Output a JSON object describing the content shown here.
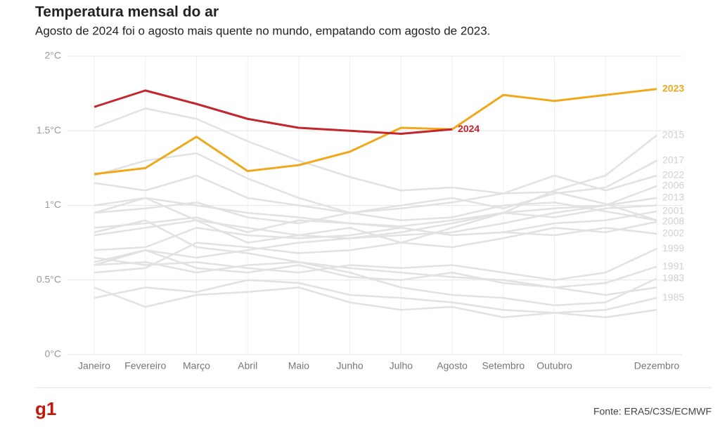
{
  "chart_data": {
    "type": "line",
    "title": "Temperatura mensal do ar",
    "subtitle": "Agosto de 2024 foi o agosto mais quente no mundo, empatando com agosto de 2023.",
    "source": "Fonte: ERA5/C3S/ECMWF",
    "logo": "g1",
    "categories": [
      "Janeiro",
      "Fevereiro",
      "Março",
      "Abril",
      "Maio",
      "Junho",
      "Julho",
      "Agosto",
      "Setembro",
      "Outubro",
      null,
      "Dezembro"
    ],
    "ylim": [
      0,
      2
    ],
    "yticks": [
      {
        "value": 0,
        "label": "0°C"
      },
      {
        "value": 0.5,
        "label": "0.5°C"
      },
      {
        "value": 1,
        "label": "1°C"
      },
      {
        "value": 1.5,
        "label": "1.5°C"
      },
      {
        "value": 2,
        "label": "2°C"
      }
    ],
    "grid": true,
    "series": [
      {
        "color": "#e2e2e2",
        "values": [
          1.52,
          1.65,
          1.58,
          1.43,
          1.3,
          1.19,
          1.1,
          1.12,
          1.08,
          1.09,
          1.01,
          0.9
        ]
      },
      {
        "color": "#e2e2e2",
        "values": [
          0.62,
          0.7,
          0.58,
          0.55,
          0.6,
          0.52,
          0.5,
          0.55,
          0.48,
          0.45,
          0.4,
          0.45
        ]
      },
      {
        "color": "#e2e2e2",
        "values": [
          0.95,
          1.05,
          0.9,
          0.85,
          0.8,
          0.78,
          0.82,
          0.88,
          0.95,
          0.92,
          0.98,
          1.0
        ]
      },
      {
        "color": "#e2e2e2",
        "values": [
          0.38,
          0.45,
          0.42,
          0.5,
          0.48,
          0.4,
          0.38,
          0.35,
          0.3,
          0.28,
          0.25,
          0.3
        ]
      },
      {
        "color": "#e2e2e2",
        "values": [
          1.15,
          1.1,
          1.2,
          1.05,
          1.0,
          0.95,
          0.9,
          0.92,
          1.0,
          1.02,
          0.96,
          0.9
        ]
      },
      {
        "name": "2015",
        "color": "#e2e2e2",
        "values": [
          0.8,
          0.85,
          0.9,
          0.75,
          0.8,
          0.85,
          0.75,
          0.85,
          0.95,
          1.1,
          1.2,
          1.47
        ]
      },
      {
        "name": "2017",
        "color": "#e2e2e2",
        "values": [
          1.2,
          1.3,
          1.35,
          1.18,
          1.05,
          0.95,
          1.0,
          1.05,
          0.98,
          1.08,
          1.12,
          1.3
        ]
      },
      {
        "name": "2022",
        "color": "#e2e2e2",
        "values": [
          0.95,
          0.98,
          1.02,
          0.92,
          0.88,
          0.95,
          0.98,
          1.02,
          1.08,
          1.2,
          1.1,
          1.2
        ]
      },
      {
        "name": "2006",
        "color": "#e2e2e2",
        "values": [
          0.6,
          0.7,
          0.65,
          0.7,
          0.75,
          0.78,
          0.8,
          0.82,
          0.88,
          0.95,
          1.0,
          1.13
        ]
      },
      {
        "name": "2013",
        "color": "#e2e2e2",
        "values": [
          0.85,
          0.88,
          0.92,
          0.82,
          0.9,
          0.88,
          0.86,
          0.9,
          0.95,
          0.98,
          1.0,
          1.05
        ]
      },
      {
        "name": "2001",
        "color": "#e2e2e2",
        "values": [
          0.7,
          0.72,
          0.85,
          0.8,
          0.78,
          0.8,
          0.85,
          0.8,
          0.82,
          0.88,
          0.9,
          0.96
        ]
      },
      {
        "name": "2008",
        "color": "#e2e2e2",
        "values": [
          0.55,
          0.58,
          0.75,
          0.72,
          0.68,
          0.7,
          0.75,
          0.72,
          0.78,
          0.85,
          0.82,
          0.89
        ]
      },
      {
        "name": "2002",
        "color": "#e2e2e2",
        "values": [
          1.0,
          1.05,
          1.0,
          0.95,
          0.92,
          0.88,
          0.85,
          0.8,
          0.82,
          0.8,
          0.85,
          0.81
        ]
      },
      {
        "name": "1999",
        "color": "#e2e2e2",
        "values": [
          0.65,
          0.6,
          0.62,
          0.58,
          0.55,
          0.6,
          0.58,
          0.6,
          0.55,
          0.5,
          0.55,
          0.71
        ]
      },
      {
        "name": "1991",
        "color": "#e2e2e2",
        "values": [
          0.6,
          0.62,
          0.55,
          0.6,
          0.62,
          0.58,
          0.55,
          0.52,
          0.5,
          0.45,
          0.48,
          0.59
        ]
      },
      {
        "name": "1983",
        "color": "#e2e2e2",
        "values": [
          0.82,
          0.9,
          0.72,
          0.68,
          0.62,
          0.55,
          0.45,
          0.4,
          0.38,
          0.33,
          0.35,
          0.51
        ]
      },
      {
        "name": "1985",
        "color": "#e2e2e2",
        "values": [
          0.45,
          0.32,
          0.4,
          0.42,
          0.45,
          0.35,
          0.3,
          0.32,
          0.25,
          0.28,
          0.3,
          0.38
        ]
      },
      {
        "name": "2023",
        "color": "#f0a81c",
        "values": [
          1.21,
          1.25,
          1.46,
          1.23,
          1.27,
          1.36,
          1.52,
          1.51,
          1.74,
          1.7,
          1.74,
          1.78
        ]
      },
      {
        "name": "2024",
        "color": "#c1272d",
        "values": [
          1.66,
          1.77,
          1.68,
          1.58,
          1.52,
          1.5,
          1.48,
          1.51,
          null,
          null,
          null,
          null
        ]
      }
    ]
  }
}
